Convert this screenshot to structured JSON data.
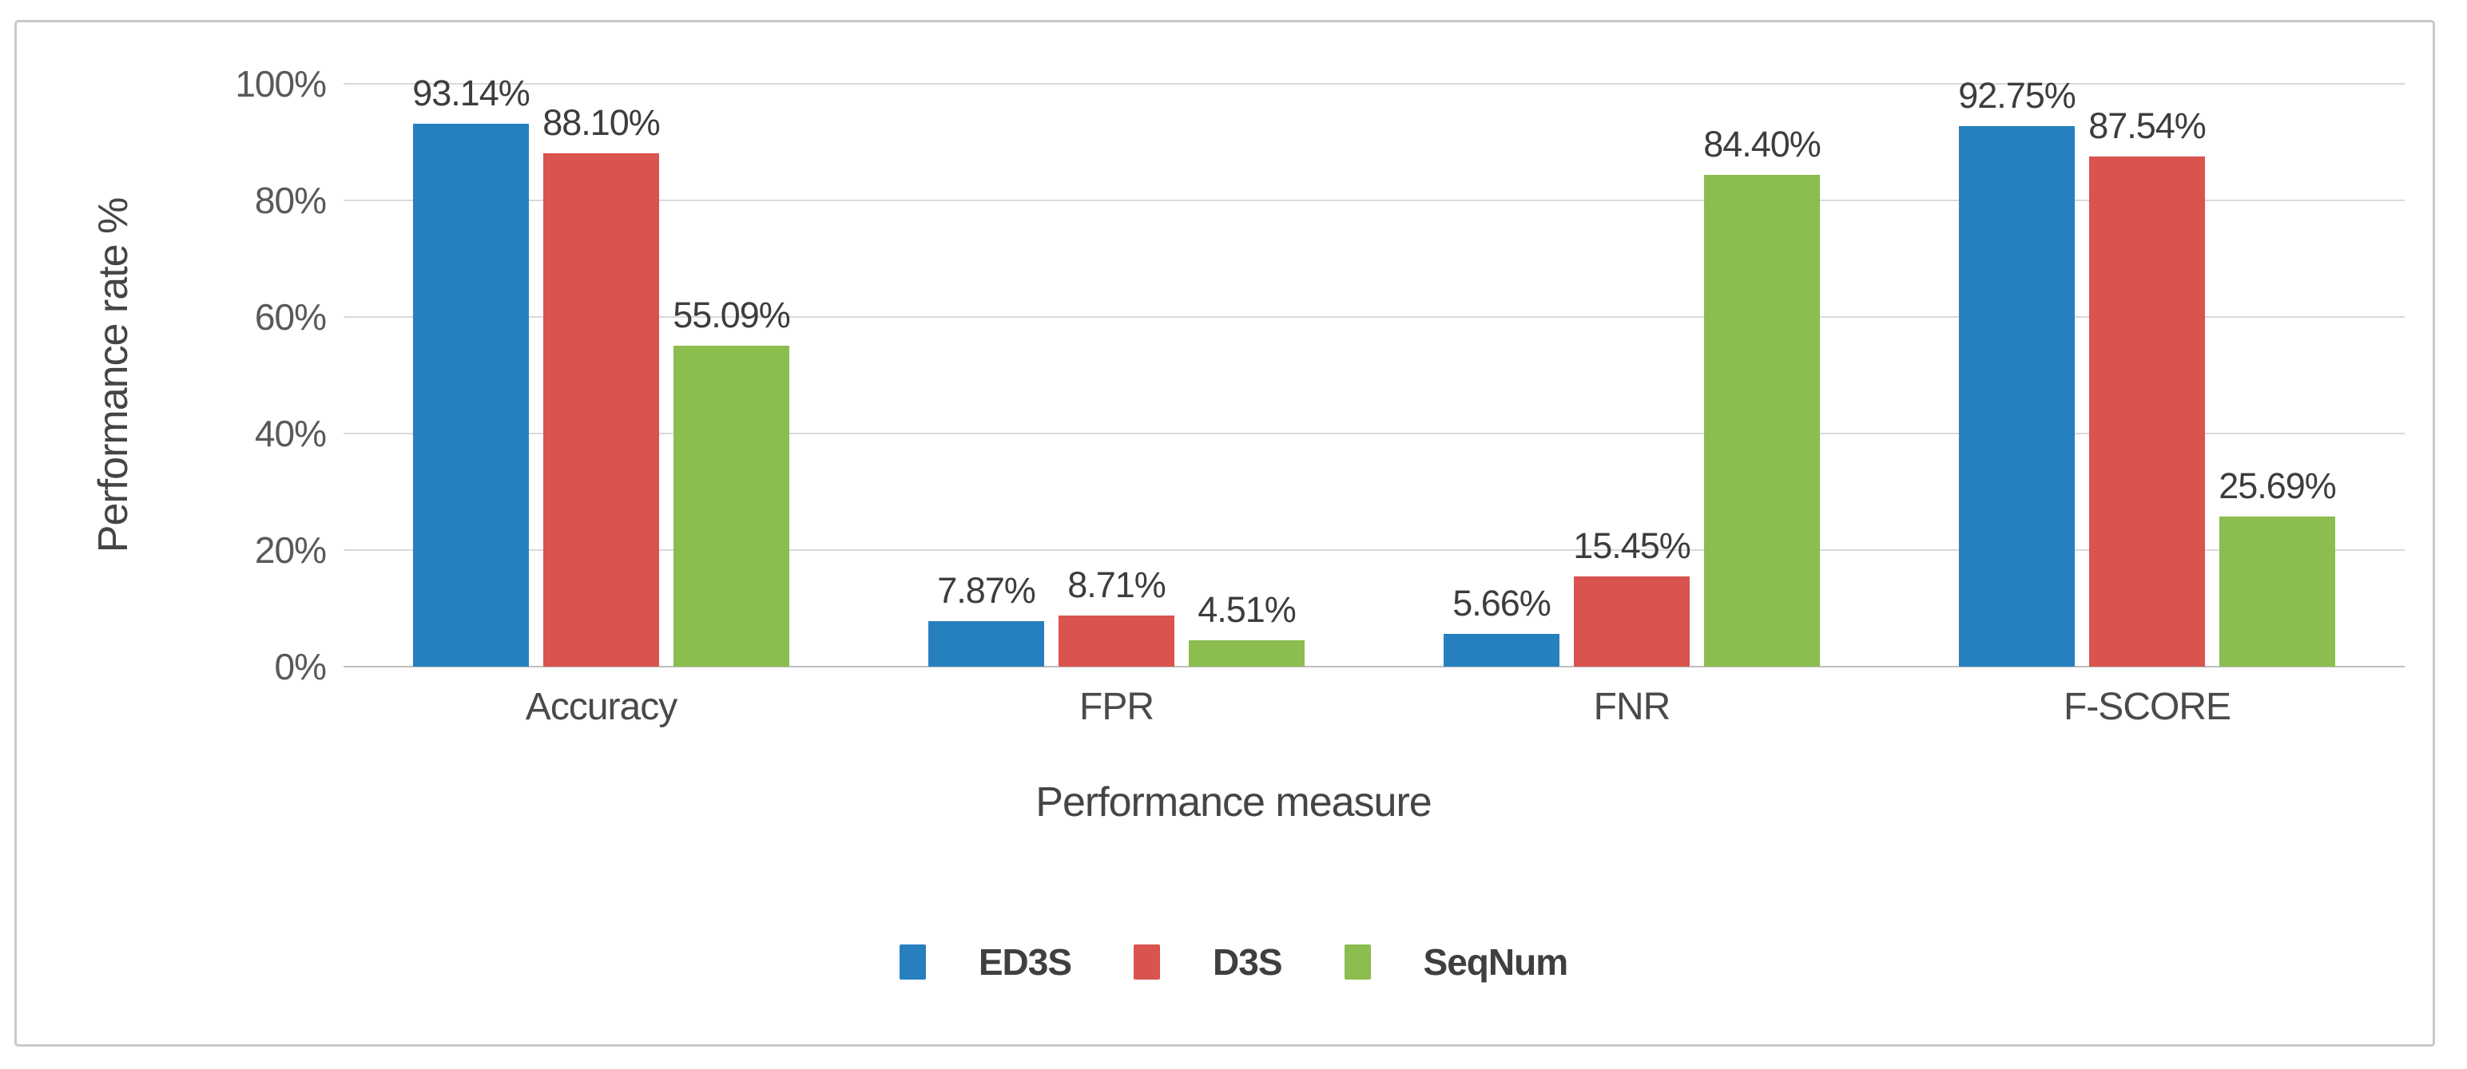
{
  "chart_data": {
    "type": "bar",
    "title": "",
    "xlabel": "Performance measure",
    "ylabel": "Performance rate %",
    "categories": [
      "Accuracy",
      "FPR",
      "FNR",
      "F-SCORE"
    ],
    "series": [
      {
        "name": "ED3S",
        "color": "#2780be",
        "values": [
          93.14,
          7.87,
          5.66,
          92.75
        ],
        "labels": [
          "93.14%",
          "7.87%",
          "5.66%",
          "92.75%"
        ]
      },
      {
        "name": "D3S",
        "color": "#d9534f",
        "values": [
          88.1,
          8.71,
          15.45,
          87.54
        ],
        "labels": [
          "88.10%",
          "8.71%",
          "15.45%",
          "87.54%"
        ]
      },
      {
        "name": "SeqNum",
        "color": "#8bbd4f",
        "values": [
          55.09,
          4.51,
          84.4,
          25.69
        ],
        "labels": [
          "55.09%",
          "4.51%",
          "84.40%",
          "25.69%"
        ]
      }
    ],
    "ylim": [
      0,
      100
    ],
    "yticks": [
      {
        "value": 0,
        "label": "0%"
      },
      {
        "value": 20,
        "label": "20%"
      },
      {
        "value": 40,
        "label": "40%"
      },
      {
        "value": 60,
        "label": "60%"
      },
      {
        "value": 80,
        "label": "80%"
      },
      {
        "value": 100,
        "label": "100%"
      }
    ],
    "grid": true,
    "legend_position": "bottom",
    "legend": [
      "ED3S",
      "D3S",
      "SeqNum"
    ]
  },
  "colors": {
    "series_ed3s": "#2780be",
    "series_d3s": "#d9534f",
    "series_seqnum": "#8bbd4f",
    "gridline": "#d9d9d9",
    "axis_line": "#bfbfbf",
    "frame_border": "#c7c9cb",
    "label_text": "#3d3d3d",
    "tick_text": "#595959"
  }
}
